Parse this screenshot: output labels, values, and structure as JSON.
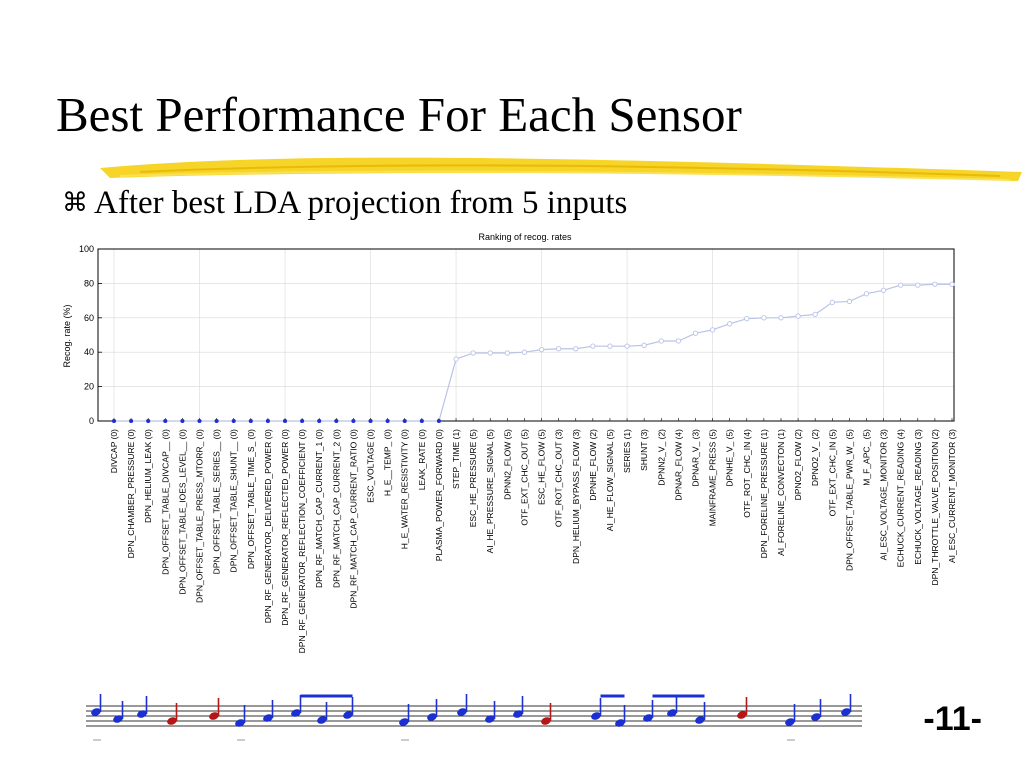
{
  "slide": {
    "title": "Best Performance For Each Sensor",
    "bullet": "After best LDA projection from 5 inputs",
    "bullet_icon": "command-key-icon",
    "page_number": "-11-",
    "accent_color": "#f3c800"
  },
  "chart_data": {
    "type": "line",
    "title": "Ranking of recog. rates",
    "xlabel": "",
    "ylabel": "Recog. rate (%)",
    "ylim": [
      0,
      100
    ],
    "yticks": [
      0,
      20,
      40,
      60,
      80,
      100
    ],
    "grid": true,
    "categories": [
      "DIVCAP (0)",
      "DPN_CHAMBER_PRESSURE (0)",
      "DPN_HELIUM_LEAK (0)",
      "DPN_OFFSET_TABLE_DIVCAP__ (0)",
      "DPN_OFFSET_TABLE_IOES_LEVEL__ (0)",
      "DPN_OFFSET_TABLE_PRESS_MTORR_ (0)",
      "DPN_OFFSET_TABLE_SERIES__ (0)",
      "DPN_OFFSET_TABLE_SHUNT__ (0)",
      "DPN_OFFSET_TABLE_TIME_S_ (0)",
      "DPN_RF_GENERATOR_DELIVERED_POWER (0)",
      "DPN_RF_GENERATOR_REFLECTED_POWER (0)",
      "DPN_RF_GENERATOR_REFLECTION_COEFFICIENT (0)",
      "DPN_RF_MATCH_CAP_CURRENT_1 (0)",
      "DPN_RF_MATCH_CAP_CURRENT_2 (0)",
      "DPN_RF_MATCH_CAP_CURRENT_RATIO (0)",
      "ESC_VOLTAGE (0)",
      "H_E__TEMP_ (0)",
      "H_E_WATER_RESISTIVITY (0)",
      "LEAK_RATE (0)",
      "PLASMA_POWER_FORWARD (0)",
      "STEP_TIME (1)",
      "ESC_HE_PRESSURE (5)",
      "AI_HE_PRESSURE_SIGNAL (5)",
      "DPNN2_FLOW (5)",
      "OTF_EXT_CHC_OUT (5)",
      "ESC_HE_FLOW (5)",
      "OTF_ROT_CHC_OUT (3)",
      "DPN_HELIUM_BYPASS_FLOW (3)",
      "DPNHE_FLOW (2)",
      "AI_HE_FLOW_SIGNAL (5)",
      "SERIES (1)",
      "SHUNT (3)",
      "DPNN2_V_ (2)",
      "DPNAR_FLOW (4)",
      "DPNAR_V_ (3)",
      "MAINFRAME_PRESS (5)",
      "DPNHE_V_ (5)",
      "OTF_ROT_CHC_IN (4)",
      "DPN_FORELINE_PRESSURE (1)",
      "AI_FORELINE_CONVECTON (1)",
      "DPNO2_FLOW (2)",
      "DPNO2_V_ (2)",
      "OTF_EXT_CHC_IN (5)",
      "DPN_OFFSET_TABLE_PWR_W_ (5)",
      "M_F_APC_ (5)",
      "AI_ESC_VOLTAGE_MONITOR (3)",
      "ECHUCK_CURRENT_READING (4)",
      "ECHUCK_VOLTAGE_READING (3)",
      "DPN_THROTTLE_VALVE_POSITION (2)",
      "AI_ESC_CURRENT_MONITOR (3)"
    ],
    "series": [
      {
        "values": [
          0,
          0,
          0,
          0,
          0,
          0,
          0,
          0,
          0,
          0,
          0,
          0,
          0,
          0,
          0,
          0,
          0,
          0,
          0,
          0,
          36,
          39.5,
          39.5,
          39.5,
          40,
          41.5,
          42,
          42,
          43.5,
          43.5,
          43.5,
          44,
          46.5,
          46.5,
          51,
          53,
          56.5,
          59.5,
          60,
          60,
          61,
          62,
          69,
          69.5,
          74,
          76,
          79,
          79,
          79.5,
          79.5
        ]
      }
    ],
    "line_color": "#b9c3e8",
    "marker_color": "#1f2fd6"
  }
}
